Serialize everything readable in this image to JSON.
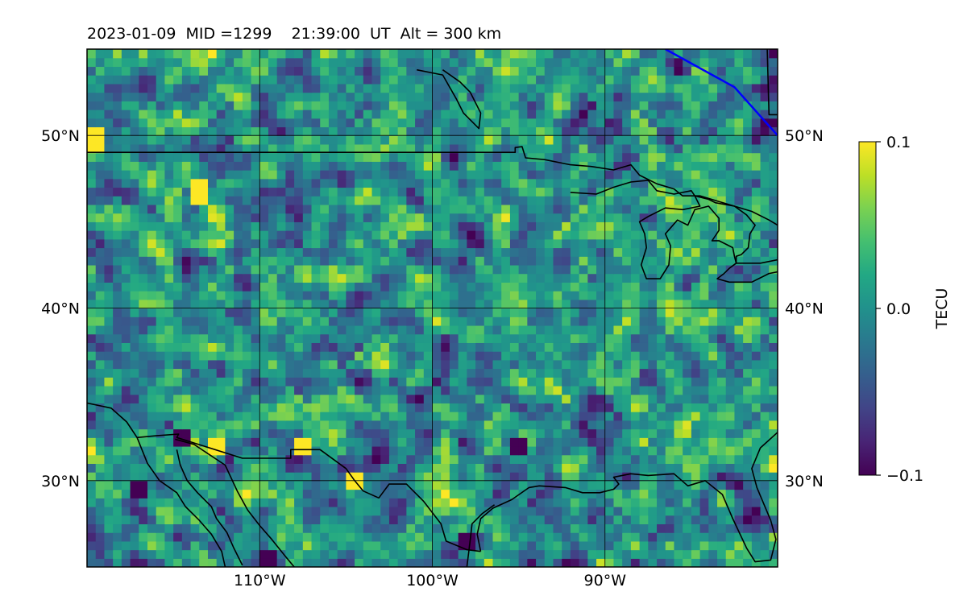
{
  "chart_data": {
    "type": "heatmap",
    "title": "2023-01-09  MID =1299    21:39:00  UT  Alt = 300 km",
    "xlabel": "",
    "ylabel": "",
    "map": {
      "lon_range": [
        -120,
        -80
      ],
      "lat_range": [
        25,
        55
      ],
      "lon_ticks": [
        -110,
        -100,
        -90
      ],
      "lon_tick_labels": [
        "110°W",
        "100°W",
        "90°W"
      ],
      "lat_ticks": [
        50,
        40,
        30
      ],
      "lat_tick_labels_left": [
        "50°N",
        "40°N",
        "30°N"
      ],
      "lat_tick_labels_right": [
        "50°N",
        "40°N",
        "30°N"
      ],
      "gridlines": true,
      "coastline_color": "#000000",
      "trajectory_color": "#0000ff",
      "trajectory": [
        [
          -86.5,
          55
        ],
        [
          -82.5,
          52.8
        ],
        [
          -80,
          50
        ]
      ]
    },
    "colorbar": {
      "label": "TECU",
      "colormap": "viridis",
      "vmin": -0.1,
      "vmax": 0.1,
      "ticks": [
        0.1,
        0.0,
        -0.1
      ],
      "tick_labels": [
        "0.1",
        "0.0",
        "−0.1"
      ]
    },
    "grid_resolution_deg": [
      0.5,
      0.5
    ],
    "field_mean": 0.0,
    "field_std": 0.035,
    "notable_values": [
      {
        "lon": -113.5,
        "lat": 46.8,
        "value": 0.1
      },
      {
        "lon": -119.5,
        "lat": 49.7,
        "value": 0.1
      },
      {
        "lon": -112.5,
        "lat": 31.8,
        "value": 0.1
      },
      {
        "lon": -107.5,
        "lat": 32,
        "value": 0.1
      },
      {
        "lon": -104.5,
        "lat": 30.1,
        "value": 0.1
      },
      {
        "lon": -109.5,
        "lat": 25.4,
        "value": -0.1
      },
      {
        "lon": -117,
        "lat": 29.5,
        "value": -0.1
      },
      {
        "lon": -95,
        "lat": 32,
        "value": -0.1
      },
      {
        "lon": -98,
        "lat": 26.5,
        "value": -0.1
      },
      {
        "lon": -114.5,
        "lat": 32.5,
        "value": -0.1
      }
    ]
  }
}
